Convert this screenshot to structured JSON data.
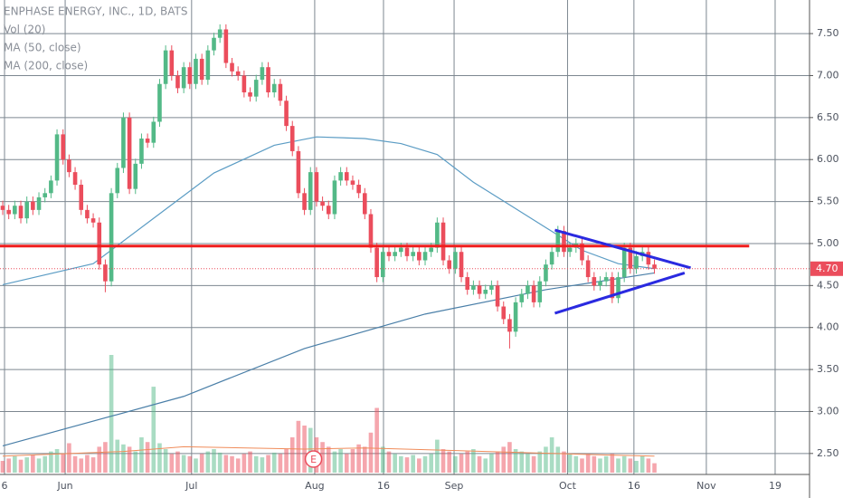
{
  "chart_data": {
    "type": "candlestick",
    "title": "ENPHASE ENERGY, INC., 1D, BATS",
    "up_color": "#53b987",
    "down_color": "#eb4d5c",
    "open": [
      5.45,
      5.4,
      5.35,
      5.45,
      5.3,
      5.5,
      5.4,
      5.55,
      5.6,
      5.75,
      6.3,
      6.0,
      5.85,
      5.7,
      5.4,
      5.3,
      5.25,
      4.75,
      4.55,
      5.6,
      5.9,
      6.5,
      5.65,
      5.95,
      6.25,
      6.2,
      6.45,
      6.9,
      7.3,
      7.0,
      6.85,
      7.1,
      6.9,
      7.2,
      6.95,
      7.3,
      7.45,
      7.55,
      7.15,
      7.05,
      7.0,
      6.8,
      6.75,
      6.95,
      7.1,
      6.8,
      6.9,
      6.7,
      6.4,
      6.1,
      5.6,
      5.4,
      5.85,
      5.5,
      5.45,
      5.35,
      5.75,
      5.85,
      5.75,
      5.7,
      5.6,
      5.35,
      4.95,
      4.6,
      4.9,
      4.85,
      4.9,
      4.95,
      4.85,
      4.9,
      4.8,
      4.9,
      4.95,
      5.25,
      4.8,
      4.7,
      4.9,
      4.6,
      4.45,
      4.5,
      4.4,
      4.45,
      4.5,
      4.25,
      4.1,
      3.95,
      4.3,
      4.4,
      4.5,
      4.3,
      4.55,
      4.75,
      4.9,
      5.15,
      4.9,
      4.95,
      5.0,
      4.8,
      4.6,
      4.5,
      4.55,
      4.6,
      4.35,
      4.6,
      4.95,
      4.7,
      4.85,
      4.9,
      4.75
    ],
    "high": [
      5.51,
      5.46,
      5.51,
      5.51,
      5.56,
      5.56,
      5.61,
      5.66,
      5.81,
      6.36,
      6.36,
      6.06,
      5.91,
      5.76,
      5.46,
      5.36,
      5.31,
      4.81,
      5.66,
      5.96,
      6.56,
      6.56,
      6.01,
      6.31,
      6.31,
      6.51,
      6.96,
      7.36,
      7.36,
      7.06,
      7.16,
      7.16,
      7.26,
      7.26,
      7.36,
      7.51,
      7.61,
      7.61,
      7.21,
      7.11,
      7.06,
      6.86,
      7.01,
      7.16,
      7.16,
      6.96,
      6.96,
      6.76,
      6.46,
      6.16,
      5.66,
      5.91,
      5.91,
      5.56,
      5.51,
      5.81,
      5.91,
      5.91,
      5.81,
      5.76,
      5.66,
      5.41,
      5.01,
      4.96,
      4.96,
      4.96,
      5.01,
      5.01,
      4.96,
      4.96,
      4.96,
      5.01,
      5.31,
      5.31,
      4.86,
      4.96,
      4.96,
      4.66,
      4.56,
      4.56,
      4.51,
      4.56,
      4.56,
      4.31,
      4.16,
      4.36,
      4.46,
      4.56,
      4.56,
      4.61,
      4.81,
      4.96,
      5.21,
      5.21,
      5.01,
      5.06,
      5.06,
      4.86,
      4.66,
      4.61,
      4.66,
      4.66,
      4.66,
      5.01,
      5.01,
      4.91,
      4.96,
      4.96,
      4.81
    ],
    "low": [
      5.34,
      5.29,
      5.29,
      5.24,
      5.24,
      5.34,
      5.34,
      5.49,
      5.54,
      5.69,
      5.94,
      5.79,
      5.64,
      5.34,
      5.24,
      5.19,
      4.69,
      4.42,
      4.49,
      5.54,
      5.84,
      5.59,
      5.59,
      5.89,
      6.14,
      6.14,
      6.39,
      6.84,
      6.94,
      6.79,
      6.79,
      6.84,
      6.84,
      6.89,
      6.89,
      7.24,
      7.39,
      7.09,
      6.99,
      6.94,
      6.74,
      6.69,
      6.69,
      6.89,
      6.74,
      6.74,
      6.64,
      6.34,
      6.04,
      5.54,
      5.34,
      5.34,
      5.44,
      5.39,
      5.29,
      5.29,
      5.69,
      5.69,
      5.64,
      5.54,
      5.29,
      4.89,
      4.54,
      4.54,
      4.79,
      4.79,
      4.84,
      4.79,
      4.79,
      4.74,
      4.74,
      4.84,
      4.89,
      4.74,
      4.64,
      4.64,
      4.54,
      4.39,
      4.39,
      4.34,
      4.34,
      4.39,
      4.19,
      4.04,
      3.75,
      3.89,
      4.24,
      4.34,
      4.24,
      4.24,
      4.49,
      4.69,
      4.84,
      4.84,
      4.84,
      4.89,
      4.74,
      4.54,
      4.44,
      4.44,
      4.49,
      4.29,
      4.29,
      4.54,
      4.64,
      4.64,
      4.79,
      4.69,
      4.64
    ],
    "close": [
      5.4,
      5.35,
      5.45,
      5.3,
      5.5,
      5.4,
      5.55,
      5.6,
      5.75,
      6.3,
      6.0,
      5.85,
      5.7,
      5.4,
      5.3,
      5.25,
      4.75,
      4.55,
      5.6,
      5.9,
      6.5,
      5.65,
      5.95,
      6.25,
      6.2,
      6.45,
      6.9,
      7.3,
      7.0,
      6.85,
      7.1,
      6.9,
      7.2,
      6.95,
      7.3,
      7.45,
      7.55,
      7.15,
      7.05,
      7.0,
      6.8,
      6.75,
      6.95,
      7.1,
      6.8,
      6.9,
      6.7,
      6.4,
      6.1,
      5.6,
      5.4,
      5.85,
      5.5,
      5.45,
      5.35,
      5.75,
      5.85,
      5.75,
      5.7,
      5.6,
      5.35,
      4.95,
      4.6,
      4.9,
      4.85,
      4.9,
      4.95,
      4.85,
      4.9,
      4.8,
      4.9,
      4.95,
      5.25,
      4.8,
      4.7,
      4.9,
      4.6,
      4.45,
      4.5,
      4.4,
      4.45,
      4.5,
      4.25,
      4.1,
      3.95,
      4.3,
      4.4,
      4.5,
      4.3,
      4.55,
      4.75,
      4.9,
      5.15,
      4.9,
      4.95,
      5.0,
      4.8,
      4.6,
      4.5,
      4.55,
      4.6,
      4.35,
      4.6,
      4.95,
      4.7,
      4.85,
      4.9,
      4.75,
      4.7
    ],
    "volume": {
      "name": "Vol (20)",
      "ylim": [
        0,
        100
      ],
      "values": [
        10,
        12,
        14,
        11,
        13,
        15,
        12,
        14,
        18,
        20,
        16,
        25,
        14,
        12,
        15,
        13,
        22,
        26,
        100,
        28,
        24,
        22,
        18,
        30,
        26,
        73,
        25,
        20,
        16,
        18,
        15,
        14,
        12,
        16,
        18,
        20,
        17,
        15,
        14,
        12,
        16,
        18,
        14,
        13,
        15,
        17,
        16,
        20,
        30,
        44,
        40,
        38,
        30,
        26,
        22,
        18,
        20,
        16,
        20,
        24,
        22,
        34,
        55,
        22,
        18,
        16,
        14,
        13,
        15,
        12,
        14,
        16,
        28,
        20,
        18,
        14,
        16,
        18,
        20,
        14,
        12,
        16,
        18,
        22,
        26,
        20,
        18,
        16,
        14,
        18,
        22,
        30,
        22,
        18,
        16,
        14,
        12,
        16,
        14,
        12,
        14,
        16,
        12,
        14,
        12,
        10,
        14,
        12,
        8
      ],
      "ma": {
        "color": "#f08c5a",
        "x": [
          0,
          20,
          30,
          50,
          60,
          80,
          100,
          108
        ],
        "values": [
          14,
          18,
          22,
          20,
          21,
          18,
          15,
          14
        ]
      }
    },
    "series": [
      {
        "name": "MA (50, close)",
        "color": "#5b9cc4",
        "x": [
          0,
          15,
          25,
          35,
          45,
          52,
          60,
          66,
          72,
          78,
          84,
          90,
          96,
          102,
          108
        ],
        "values": [
          4.51,
          4.76,
          5.3,
          5.84,
          6.17,
          6.27,
          6.25,
          6.19,
          6.06,
          5.73,
          5.46,
          5.19,
          4.92,
          4.76,
          4.7
        ]
      },
      {
        "name": "MA (200, close)",
        "color": "#4a7fa8",
        "x": [
          0,
          30,
          50,
          70,
          90,
          108
        ],
        "values": [
          2.59,
          3.18,
          3.75,
          4.16,
          4.45,
          4.65
        ]
      }
    ],
    "hline": {
      "color": "#f01e1e",
      "x": [
        -0.45,
        123.7
      ],
      "values": [
        4.97,
        4.97
      ]
    },
    "trendlines": [
      {
        "color": "#2a2ae0",
        "x": [
          91.5,
          114
        ],
        "values": [
          5.16,
          4.71
        ]
      },
      {
        "color": "#2a2ae0",
        "x": [
          91.5,
          113
        ],
        "values": [
          4.17,
          4.65
        ]
      }
    ],
    "last_price": {
      "value": 4.7,
      "label": "4.70"
    },
    "earnings": {
      "x": 51.5,
      "label": "E"
    },
    "xlim": [
      -0.45,
      133.7
    ],
    "xticks": [
      {
        "value": 0.3,
        "label": "6"
      },
      {
        "value": 10.35,
        "label": "Jun"
      },
      {
        "value": 31.3,
        "label": "Jul"
      },
      {
        "value": 51.7,
        "label": "Aug"
      },
      {
        "value": 63.1,
        "label": "16"
      },
      {
        "value": 74.8,
        "label": "Sep"
      },
      {
        "value": 93.6,
        "label": "Oct"
      },
      {
        "value": 104.6,
        "label": "16"
      },
      {
        "value": 116.6,
        "label": "Nov"
      },
      {
        "value": 128,
        "label": "19"
      }
    ],
    "ylim": [
      2.25,
      7.9
    ],
    "yticks": [
      {
        "value": 2.5,
        "label": "2.50"
      },
      {
        "value": 3,
        "label": "3.00"
      },
      {
        "value": 3.5,
        "label": "3.50"
      },
      {
        "value": 4,
        "label": "4.00"
      },
      {
        "value": 4.5,
        "label": "4.50"
      },
      {
        "value": 5,
        "label": "5.00"
      },
      {
        "value": 5.5,
        "label": "5.50"
      },
      {
        "value": 6,
        "label": "6.00"
      },
      {
        "value": 6.5,
        "label": "6.50"
      },
      {
        "value": 7,
        "label": "7.00"
      },
      {
        "value": 7.5,
        "label": "7.50"
      }
    ],
    "grid": true
  }
}
